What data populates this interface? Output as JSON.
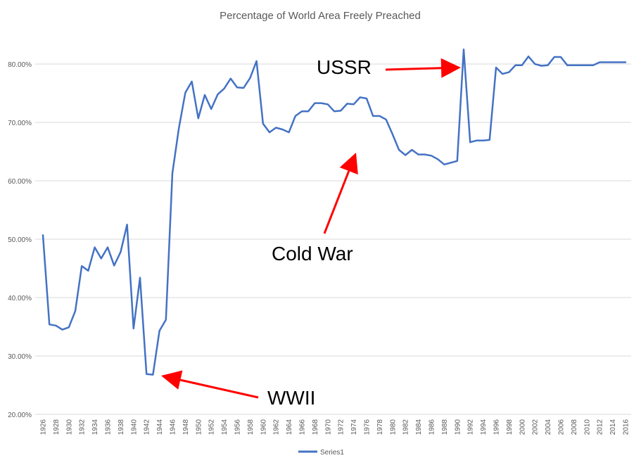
{
  "chart_data": {
    "type": "line",
    "title": "Percentage of World Area Freely Preached",
    "xlabel": "",
    "ylabel": "",
    "ylim": [
      20,
      85
    ],
    "yticks": [
      "20.00%",
      "30.00%",
      "40.00%",
      "50.00%",
      "60.00%",
      "70.00%",
      "80.00%"
    ],
    "grid": true,
    "legend_placement": "bottom",
    "colors": {
      "series": "#4472c4",
      "arrow": "#ff0000",
      "grid": "#d9d9d9"
    },
    "x": [
      1926,
      1927,
      1928,
      1929,
      1930,
      1931,
      1932,
      1933,
      1934,
      1935,
      1936,
      1937,
      1938,
      1939,
      1940,
      1941,
      1942,
      1943,
      1944,
      1945,
      1946,
      1947,
      1948,
      1949,
      1950,
      1951,
      1952,
      1953,
      1954,
      1955,
      1956,
      1957,
      1958,
      1959,
      1960,
      1961,
      1962,
      1963,
      1964,
      1965,
      1966,
      1967,
      1968,
      1969,
      1970,
      1971,
      1972,
      1973,
      1974,
      1975,
      1976,
      1977,
      1978,
      1979,
      1980,
      1981,
      1982,
      1983,
      1984,
      1985,
      1986,
      1987,
      1988,
      1989,
      1990,
      1991,
      1992,
      1993,
      1994,
      1995,
      1996,
      1997,
      1998,
      1999,
      2000,
      2001,
      2002,
      2003,
      2004,
      2005,
      2006,
      2007,
      2008,
      2009,
      2010,
      2011,
      2012,
      2013,
      2014,
      2015,
      2016
    ],
    "xtick_labels": [
      "1926",
      "1928",
      "1930",
      "1932",
      "1934",
      "1936",
      "1938",
      "1940",
      "1942",
      "1944",
      "1946",
      "1948",
      "1950",
      "1952",
      "1954",
      "1956",
      "1958",
      "1960",
      "1962",
      "1964",
      "1966",
      "1968",
      "1970",
      "1972",
      "1974",
      "1976",
      "1978",
      "1980",
      "1982",
      "1984",
      "1986",
      "1988",
      "1990",
      "1992",
      "1994",
      "1996",
      "1998",
      "2000",
      "2002",
      "2004",
      "2006",
      "2008",
      "2010",
      "2012",
      "2014",
      "2016"
    ],
    "series": [
      {
        "name": "Series1",
        "values": [
          50.7,
          35.4,
          35.2,
          34.5,
          34.9,
          37.7,
          45.4,
          44.6,
          48.6,
          46.7,
          48.6,
          45.5,
          47.8,
          52.5,
          34.7,
          43.4,
          26.9,
          26.8,
          34.3,
          36.2,
          61.3,
          69.0,
          75.1,
          77.0,
          70.7,
          74.7,
          72.3,
          74.8,
          75.8,
          77.5,
          76.0,
          75.9,
          77.6,
          80.5,
          69.8,
          68.3,
          69.1,
          68.8,
          68.3,
          71.1,
          71.9,
          71.9,
          73.3,
          73.3,
          73.1,
          71.9,
          72.0,
          73.2,
          73.1,
          74.3,
          74.1,
          71.1,
          71.1,
          70.5,
          68.0,
          65.3,
          64.4,
          65.3,
          64.5,
          64.5,
          64.3,
          63.7,
          62.8,
          63.1,
          63.4,
          82.5,
          66.6,
          66.9,
          66.9,
          67.0,
          79.4,
          78.3,
          78.6,
          79.8,
          79.8,
          81.3,
          80.0,
          79.7,
          79.8,
          81.2,
          81.2,
          79.8,
          79.8,
          79.8,
          79.8,
          79.8,
          80.3,
          80.3,
          80.3,
          80.3,
          80.3
        ]
      }
    ],
    "annotations": [
      {
        "text": "USSR",
        "x": 1991,
        "y": 80.0
      },
      {
        "text": "Cold War",
        "x": 1975,
        "y": 66.0
      },
      {
        "text": "WWII",
        "x": 1943,
        "y": 26.8
      }
    ]
  }
}
